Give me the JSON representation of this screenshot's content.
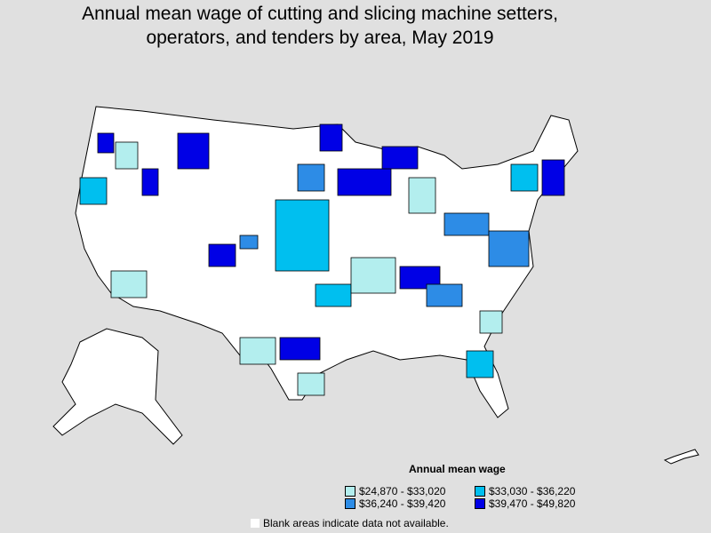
{
  "title": "Annual mean wage of cutting and slicing machine setters,\noperators, and tenders by area, May 2019",
  "legend": {
    "title": "Annual mean wage",
    "items": [
      {
        "label": "$24,870 - $33,020",
        "color": "#b3eeee"
      },
      {
        "label": "$33,030 - $36,220",
        "color": "#00bfef"
      },
      {
        "label": "$36,240 - $39,420",
        "color": "#2d8ce6"
      },
      {
        "label": "$39,470 - $49,820",
        "color": "#0000e6"
      }
    ]
  },
  "note": "Blank areas indicate data not available."
}
